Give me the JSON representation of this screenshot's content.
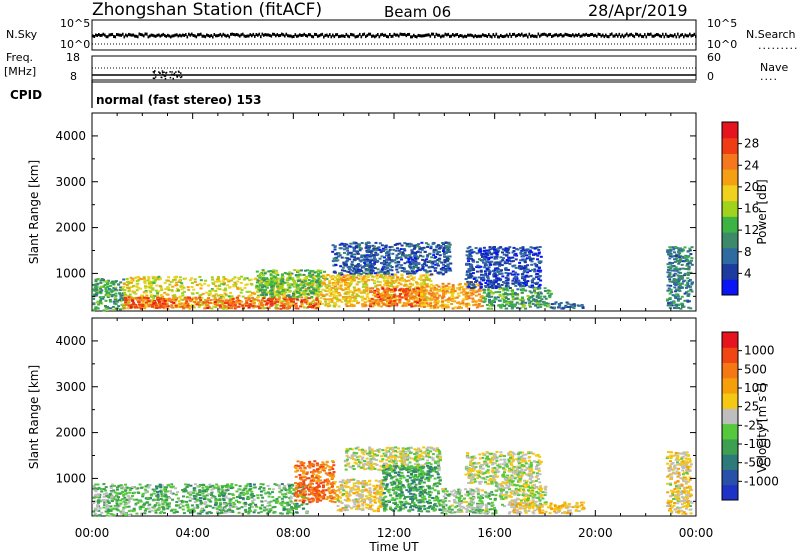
{
  "header": {
    "station": "Zhongshan Station (fitACF)",
    "beam": "Beam 06",
    "date": "28/Apr/2019"
  },
  "top_panels": {
    "nsky_label": "N.Sky",
    "nsky_ticks": [
      "10^5",
      "10^0"
    ],
    "nsearch_label": "N.Search",
    "nsearch_ticks": [
      "10^5",
      "10^0"
    ],
    "freq_label": "Freq.",
    "freq_unit": "[MHz]",
    "freq_ticks": [
      "18",
      "8"
    ],
    "nave_label": "Nave",
    "nave_ticks": [
      "60",
      "0"
    ],
    "cpid_label": "CPID",
    "cpid_text": "normal (fast stereo) 153"
  },
  "chart_data": [
    {
      "type": "heatmap",
      "panel": "power",
      "ylabel": "Slant Range [km]",
      "xlabel": "",
      "ylim": [
        180,
        4500
      ],
      "yticks": [
        "1000",
        "2000",
        "3000",
        "4000"
      ],
      "xlim": [
        0,
        24
      ],
      "colorbar": {
        "label": "Power [dB]",
        "range": [
          0,
          32
        ],
        "ticks": [
          "4",
          "8",
          "12",
          "16",
          "20",
          "24",
          "28"
        ],
        "colors": [
          "#0a14f5",
          "#1e3ca0",
          "#2f6aa0",
          "#3c8a6a",
          "#3cb444",
          "#a0d21e",
          "#f0d21e",
          "#f5a012",
          "#f5781e",
          "#f03c14",
          "#e6141e"
        ]
      },
      "regions": [
        {
          "t0": 0.0,
          "t1": 1.2,
          "r0": 200,
          "r1": 900,
          "value": 12
        },
        {
          "t0": 1.2,
          "t1": 9.0,
          "r0": 250,
          "r1": 950,
          "value": 18
        },
        {
          "t0": 1.2,
          "t1": 9.0,
          "r0": 250,
          "r1": 500,
          "value": 26
        },
        {
          "t0": 6.5,
          "t1": 9.3,
          "r0": 500,
          "r1": 1100,
          "value": 14
        },
        {
          "t0": 9.0,
          "t1": 13.5,
          "r0": 300,
          "r1": 1000,
          "value": 20
        },
        {
          "t0": 9.5,
          "t1": 14.2,
          "r0": 1000,
          "r1": 1700,
          "value": 6
        },
        {
          "t0": 11.0,
          "t1": 13.0,
          "r0": 300,
          "r1": 700,
          "value": 26
        },
        {
          "t0": 13.0,
          "t1": 15.5,
          "r0": 250,
          "r1": 800,
          "value": 22
        },
        {
          "t0": 14.8,
          "t1": 17.8,
          "r0": 700,
          "r1": 1600,
          "value": 5
        },
        {
          "t0": 15.5,
          "t1": 18.2,
          "r0": 250,
          "r1": 700,
          "value": 12
        },
        {
          "t0": 18.2,
          "t1": 19.5,
          "r0": 250,
          "r1": 400,
          "value": 6
        },
        {
          "t0": 22.8,
          "t1": 23.8,
          "r0": 250,
          "r1": 1600,
          "value": 9
        }
      ]
    },
    {
      "type": "heatmap",
      "panel": "velocity",
      "ylabel": "Slant Range [km]",
      "xlabel": "Time UT",
      "ylim": [
        180,
        4500
      ],
      "yticks": [
        "1000",
        "2000",
        "3000",
        "4000"
      ],
      "xlim": [
        0,
        24
      ],
      "xticks": [
        "00:00",
        "04:00",
        "08:00",
        "12:00",
        "16:00",
        "20:00",
        "00:00"
      ],
      "colorbar": {
        "label": "Velocity  [m s",
        "label_sup": "-1",
        "label_end": "]",
        "range": [
          -1200,
          1200
        ],
        "ticks": [
          "1000",
          "500",
          "100",
          "25",
          "-25",
          "-100",
          "-500",
          "-1000"
        ],
        "colors": [
          "#1e32c8",
          "#2850a8",
          "#2e7a7a",
          "#3ca050",
          "#55c83c",
          "#bebebe",
          "#f5c814",
          "#f5a00a",
          "#f57814",
          "#f04614",
          "#e6141e"
        ]
      },
      "regions": [
        {
          "t0": 0.0,
          "t1": 1.5,
          "r0": 200,
          "r1": 900,
          "value": -200
        },
        {
          "t0": 1.5,
          "t1": 8.5,
          "r0": 250,
          "r1": 900,
          "value": -300
        },
        {
          "t0": 8.0,
          "t1": 9.6,
          "r0": 500,
          "r1": 1400,
          "value": 700
        },
        {
          "t0": 9.6,
          "t1": 11.5,
          "r0": 300,
          "r1": 1000,
          "value": 150
        },
        {
          "t0": 10.0,
          "t1": 13.8,
          "r0": 1200,
          "r1": 1700,
          "value": 0
        },
        {
          "t0": 11.5,
          "t1": 13.8,
          "r0": 300,
          "r1": 1300,
          "value": -400
        },
        {
          "t0": 13.8,
          "t1": 16.0,
          "r0": 250,
          "r1": 800,
          "value": -150
        },
        {
          "t0": 14.8,
          "t1": 17.8,
          "r0": 900,
          "r1": 1600,
          "value": 0
        },
        {
          "t0": 16.0,
          "t1": 18.0,
          "r0": 400,
          "r1": 900,
          "value": 10
        },
        {
          "t0": 16.5,
          "t1": 19.5,
          "r0": 250,
          "r1": 500,
          "value": 200
        },
        {
          "t0": 22.8,
          "t1": 23.8,
          "r0": 250,
          "r1": 1600,
          "value": 150
        }
      ]
    }
  ]
}
